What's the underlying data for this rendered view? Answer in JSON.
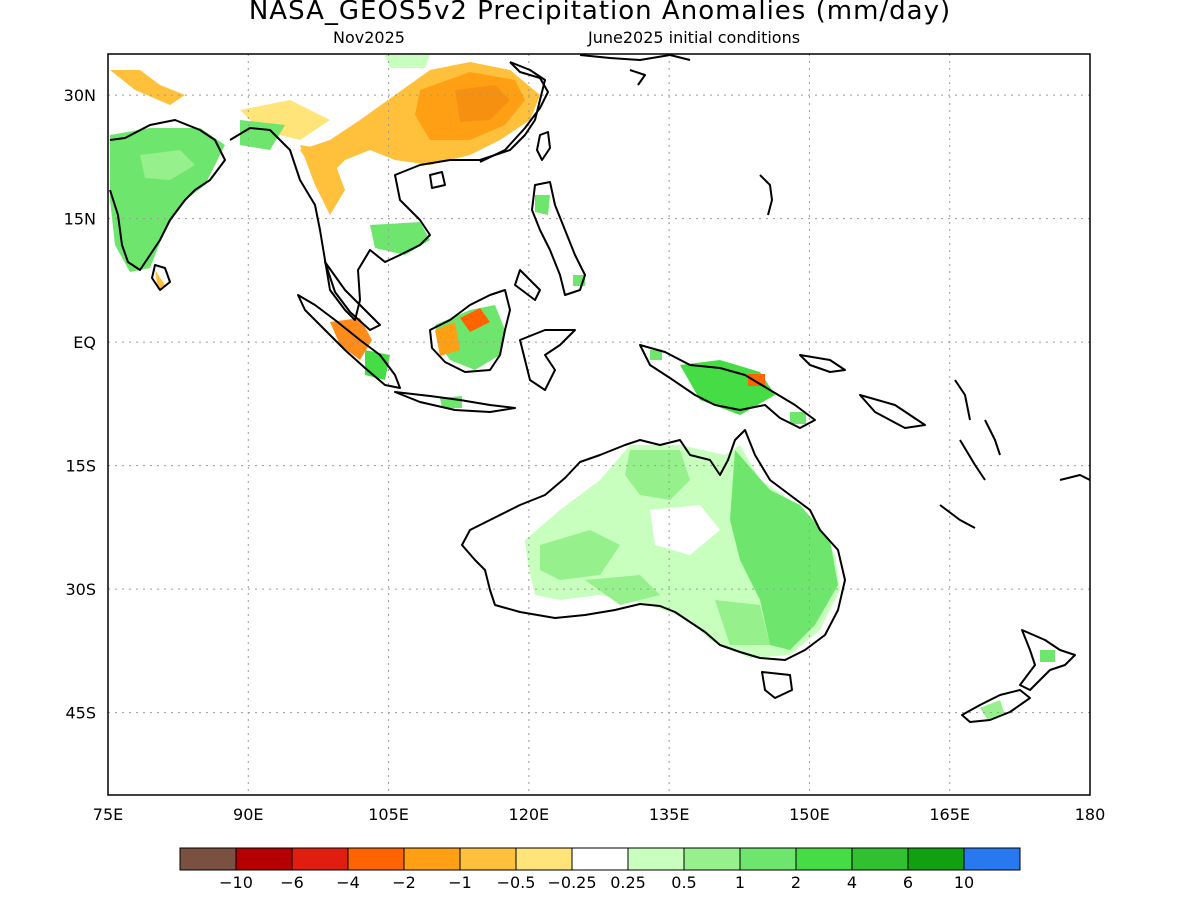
{
  "title": "NASA_GEOS5v2 Precipitation Anomalies (mm/day)",
  "subtitle_left": "Nov2025",
  "subtitle_right": "June2025 initial conditions",
  "map": {
    "lon_range": [
      75,
      180
    ],
    "lat_range": [
      -55,
      35
    ],
    "x_ticks": [
      "75E",
      "90E",
      "105E",
      "120E",
      "135E",
      "150E",
      "165E",
      "180"
    ],
    "y_ticks": [
      "30N",
      "15N",
      "EQ",
      "15S",
      "30S",
      "45S"
    ],
    "grid": true
  },
  "colorbar": {
    "colors": [
      "#7a5040",
      "#b40000",
      "#e01e10",
      "#ff6400",
      "#ffa014",
      "#ffc03c",
      "#ffe47a",
      "#ffffff",
      "#c8ffbe",
      "#96f08c",
      "#6ee66e",
      "#46dc46",
      "#30c030",
      "#10a010",
      "#2878f0"
    ],
    "labels": [
      "-10",
      "-6",
      "-4",
      "-2",
      "-1",
      "-0.5",
      "-0.25",
      "0.25",
      "0.5",
      "1",
      "2",
      "4",
      "6",
      "10"
    ]
  }
}
